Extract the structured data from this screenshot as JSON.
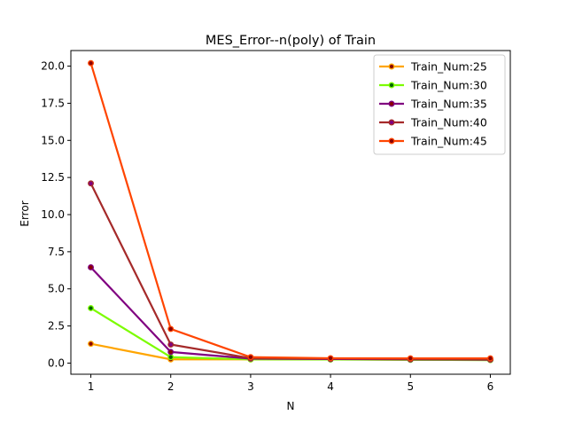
{
  "chart_data": {
    "type": "line",
    "title": "MES_Error--n(poly) of Train",
    "xlabel": "N",
    "ylabel": "Error",
    "x": [
      1,
      2,
      3,
      4,
      5,
      6
    ],
    "xlim": [
      0.75,
      6.25
    ],
    "ylim": [
      -0.75,
      21.05
    ],
    "xticks": [
      1,
      2,
      3,
      4,
      5,
      6
    ],
    "xtick_labels": [
      "1",
      "2",
      "3",
      "4",
      "5",
      "6"
    ],
    "yticks": [
      0.0,
      2.5,
      5.0,
      7.5,
      10.0,
      12.5,
      15.0,
      17.5,
      20.0
    ],
    "ytick_labels": [
      "0.0",
      "2.5",
      "5.0",
      "7.5",
      "10.0",
      "12.5",
      "15.0",
      "17.5",
      "20.0"
    ],
    "grid": false,
    "legend_position": "top-right",
    "series": [
      {
        "name": "Train_Num:25",
        "color": "#ffa500",
        "marker_color": "#8b0000",
        "values": [
          1.3,
          0.25,
          0.25,
          0.25,
          0.23,
          0.22
        ]
      },
      {
        "name": "Train_Num:30",
        "color": "#7cfc00",
        "marker_color": "#006400",
        "values": [
          3.7,
          0.4,
          0.25,
          0.24,
          0.22,
          0.2
        ]
      },
      {
        "name": "Train_Num:35",
        "color": "#800080",
        "marker_color": "#8b0000",
        "values": [
          6.45,
          0.75,
          0.3,
          0.27,
          0.25,
          0.23
        ]
      },
      {
        "name": "Train_Num:40",
        "color": "#a52a2a",
        "marker_color": "#800080",
        "values": [
          12.1,
          1.25,
          0.33,
          0.3,
          0.28,
          0.25
        ]
      },
      {
        "name": "Train_Num:45",
        "color": "#ff4500",
        "marker_color": "#8b0000",
        "values": [
          20.2,
          2.3,
          0.4,
          0.33,
          0.32,
          0.32
        ]
      }
    ]
  }
}
